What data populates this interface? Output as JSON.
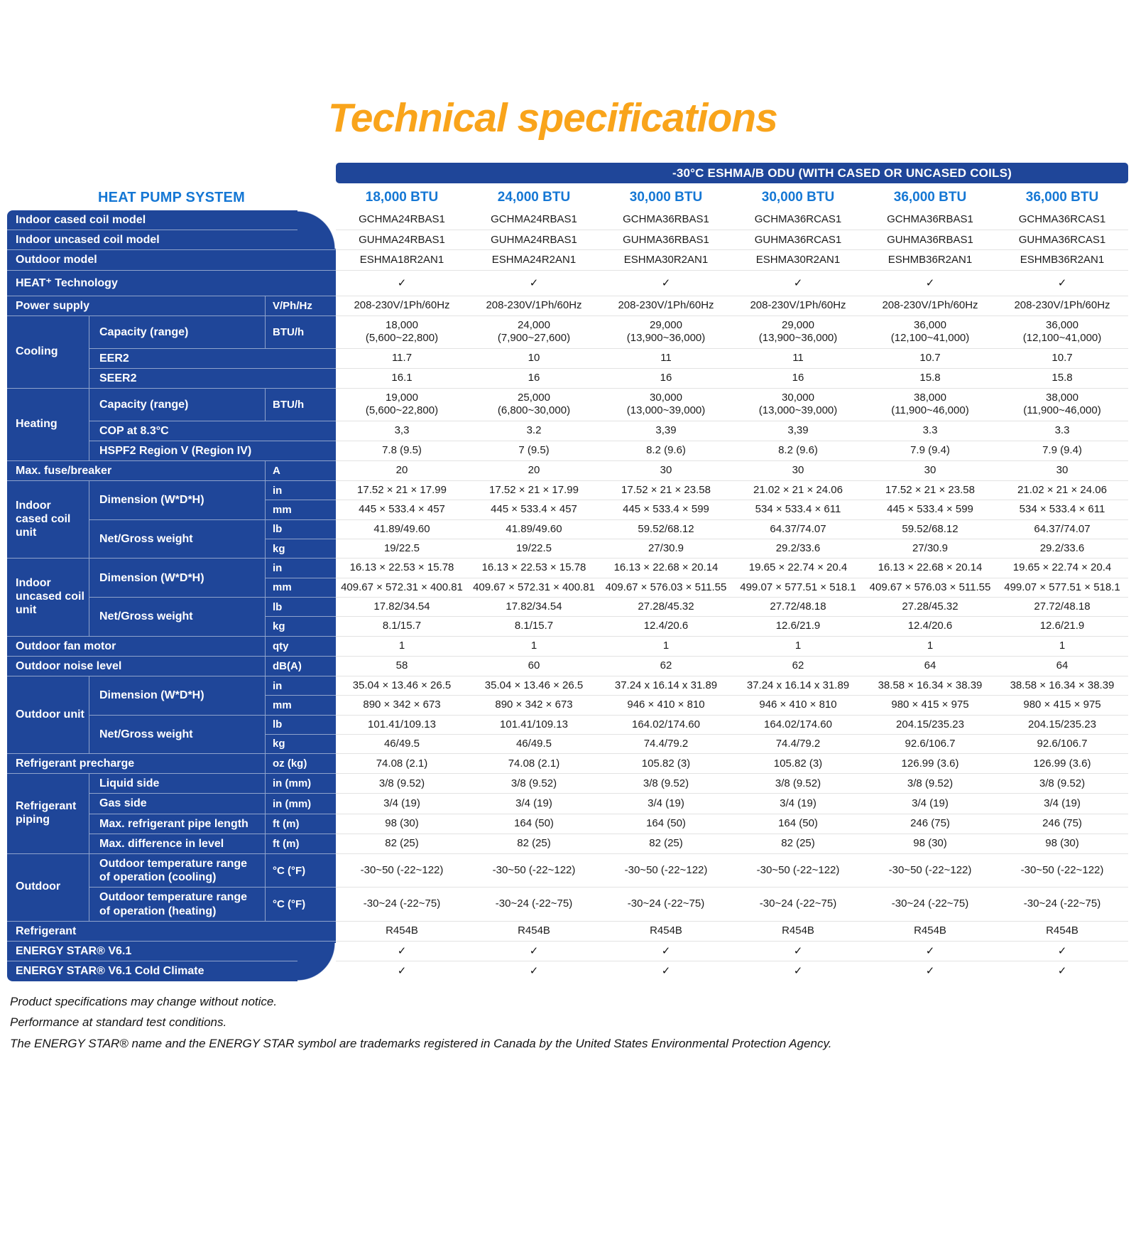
{
  "page": {
    "title": "Technical specifications",
    "band_title": "-30°C ESHMA/B ODU (WITH CASED OR UNCASED COILS)",
    "system_label": "HEAT PUMP SYSTEM",
    "column_headers": [
      "18,000 BTU",
      "24,000 BTU",
      "30,000 BTU",
      "30,000 BTU",
      "36,000 BTU",
      "36,000 BTU"
    ],
    "footnotes": [
      "Product specifications may change without notice.",
      "Performance at standard test conditions.",
      "The ENERGY STAR® name and the ENERGY STAR symbol are trademarks registered in Canada by the United States Environmental Protection Agency."
    ]
  },
  "colors": {
    "dark_blue": "#1F4699",
    "bright_blue": "#1577D4",
    "orange": "#F9A41B",
    "row_separator": "#e3e3e3",
    "value_text": "#1c1c1c"
  },
  "table": {
    "rows": [
      {
        "label": "Indoor cased coil model",
        "span": 3,
        "values": [
          "GCHMA24RBAS1",
          "GCHMA24RBAS1",
          "GCHMA36RBAS1",
          "GCHMA36RCAS1",
          "GCHMA36RBAS1",
          "GCHMA36RCAS1"
        ]
      },
      {
        "label": "Indoor uncased coil model",
        "span": 3,
        "values": [
          "GUHMA24RBAS1",
          "GUHMA24RBAS1",
          "GUHMA36RBAS1",
          "GUHMA36RCAS1",
          "GUHMA36RBAS1",
          "GUHMA36RCAS1"
        ]
      },
      {
        "label": "Outdoor model",
        "span": 3,
        "values": [
          "ESHMA18R2AN1",
          "ESHMA24R2AN1",
          "ESHMA30R2AN1",
          "ESHMA30R2AN1",
          "ESHMB36R2AN1",
          "ESHMB36R2AN1"
        ]
      },
      {
        "label": "HEAT⁺ Technology",
        "span": 3,
        "check": true,
        "cls": "h-heat",
        "values": [
          "✓",
          "✓",
          "✓",
          "✓",
          "✓",
          "✓"
        ]
      },
      {
        "label": "Power supply",
        "span": 2,
        "unit": "V/Ph/Hz",
        "values": [
          "208-230V/1Ph/60Hz",
          "208-230V/1Ph/60Hz",
          "208-230V/1Ph/60Hz",
          "208-230V/1Ph/60Hz",
          "208-230V/1Ph/60Hz",
          "208-230V/1Ph/60Hz"
        ]
      },
      {
        "group": "Cooling",
        "group_rows": 3,
        "label": "Capacity (range)",
        "span": 1,
        "unit": "BTU/h",
        "values": [
          "18,000\n(5,600~22,800)",
          "24,000\n(7,900~27,600)",
          "29,000\n(13,900~36,000)",
          "29,000\n(13,900~36,000)",
          "36,000\n(12,100~41,000)",
          "36,000\n(12,100~41,000)"
        ]
      },
      {
        "label": "EER2",
        "span": 2,
        "values": [
          "11.7",
          "10",
          "11",
          "11",
          "10.7",
          "10.7"
        ]
      },
      {
        "label": "SEER2",
        "span": 2,
        "values": [
          "16.1",
          "16",
          "16",
          "16",
          "15.8",
          "15.8"
        ]
      },
      {
        "group": "Heating",
        "group_rows": 3,
        "label": "Capacity (range)",
        "span": 1,
        "unit": "BTU/h",
        "values": [
          "19,000\n(5,600~22,800)",
          "25,000\n(6,800~30,000)",
          "30,000\n(13,000~39,000)",
          "30,000\n(13,000~39,000)",
          "38,000\n(11,900~46,000)",
          "38,000\n(11,900~46,000)"
        ]
      },
      {
        "label": "COP at 8.3°C",
        "span": 2,
        "values": [
          "3,3",
          "3.2",
          "3,39",
          "3,39",
          "3.3",
          "3.3"
        ]
      },
      {
        "label": "HSPF2 Region V (Region IV)",
        "span": 2,
        "values": [
          "7.8 (9.5)",
          "7 (9.5)",
          "8.2 (9.6)",
          "8.2 (9.6)",
          "7.9 (9.4)",
          "7.9 (9.4)"
        ]
      },
      {
        "label": "Max. fuse/breaker",
        "span": 2,
        "unit": "A",
        "values": [
          "20",
          "20",
          "30",
          "30",
          "30",
          "30"
        ]
      },
      {
        "group": "Indoor cased coil unit",
        "group_rows": 4,
        "label": "Dimension (W*D*H)",
        "label_rows": 2,
        "span": 1,
        "unit": "in",
        "values": [
          "17.52 × 21 × 17.99",
          "17.52 × 21 × 17.99",
          "17.52 × 21 × 23.58",
          "21.02 × 21 × 24.06",
          "17.52 × 21 × 23.58",
          "21.02 × 21 × 24.06"
        ]
      },
      {
        "unit": "mm",
        "values": [
          "445 × 533.4 × 457",
          "445 × 533.4 × 457",
          "445 × 533.4 × 599",
          "534 × 533.4 × 611",
          "445 × 533.4 × 599",
          "534 × 533.4 × 611"
        ]
      },
      {
        "label": "Net/Gross weight",
        "label_rows": 2,
        "span": 1,
        "unit": "lb",
        "values": [
          "41.89/49.60",
          "41.89/49.60",
          "59.52/68.12",
          "64.37/74.07",
          "59.52/68.12",
          "64.37/74.07"
        ]
      },
      {
        "unit": "kg",
        "values": [
          "19/22.5",
          "19/22.5",
          "27/30.9",
          "29.2/33.6",
          "27/30.9",
          "29.2/33.6"
        ]
      },
      {
        "group": "Indoor uncased coil unit",
        "group_rows": 4,
        "label": "Dimension (W*D*H)",
        "label_rows": 2,
        "span": 1,
        "unit": "in",
        "values": [
          "16.13 × 22.53 × 15.78",
          "16.13 × 22.53 × 15.78",
          "16.13 × 22.68 × 20.14",
          "19.65 × 22.74 × 20.4",
          "16.13 × 22.68 × 20.14",
          "19.65 × 22.74 × 20.4"
        ]
      },
      {
        "unit": "mm",
        "values": [
          "409.67 × 572.31 × 400.81",
          "409.67 × 572.31 × 400.81",
          "409.67 × 576.03 × 511.55",
          "499.07 × 577.51 × 518.1",
          "409.67 × 576.03 × 511.55",
          "499.07 × 577.51 × 518.1"
        ]
      },
      {
        "label": "Net/Gross weight",
        "label_rows": 2,
        "span": 1,
        "unit": "lb",
        "values": [
          "17.82/34.54",
          "17.82/34.54",
          "27.28/45.32",
          "27.72/48.18",
          "27.28/45.32",
          "27.72/48.18"
        ]
      },
      {
        "unit": "kg",
        "values": [
          "8.1/15.7",
          "8.1/15.7",
          "12.4/20.6",
          "12.6/21.9",
          "12.4/20.6",
          "12.6/21.9"
        ]
      },
      {
        "label": "Outdoor fan motor",
        "span": 2,
        "unit": "qty",
        "values": [
          "1",
          "1",
          "1",
          "1",
          "1",
          "1"
        ]
      },
      {
        "label": "Outdoor noise level",
        "span": 2,
        "unit": "dB(A)",
        "values": [
          "58",
          "60",
          "62",
          "62",
          "64",
          "64"
        ]
      },
      {
        "group": "Outdoor unit",
        "group_rows": 4,
        "label": "Dimension (W*D*H)",
        "label_rows": 2,
        "span": 1,
        "unit": "in",
        "values": [
          "35.04 × 13.46 × 26.5",
          "35.04 × 13.46 × 26.5",
          "37.24 x 16.14 x 31.89",
          "37.24 x 16.14 x 31.89",
          "38.58 × 16.34 × 38.39",
          "38.58 × 16.34 × 38.39"
        ]
      },
      {
        "unit": "mm",
        "values": [
          "890 × 342 × 673",
          "890 × 342 × 673",
          "946 × 410 × 810",
          "946 × 410 × 810",
          "980 × 415 × 975",
          "980 × 415 × 975"
        ]
      },
      {
        "label": "Net/Gross weight",
        "label_rows": 2,
        "span": 1,
        "unit": "lb",
        "values": [
          "101.41/109.13",
          "101.41/109.13",
          "164.02/174.60",
          "164.02/174.60",
          "204.15/235.23",
          "204.15/235.23"
        ]
      },
      {
        "unit": "kg",
        "values": [
          "46/49.5",
          "46/49.5",
          "74.4/79.2",
          "74.4/79.2",
          "92.6/106.7",
          "92.6/106.7"
        ]
      },
      {
        "label": "Refrigerant precharge",
        "span": 2,
        "unit": "oz (kg)",
        "values": [
          "74.08 (2.1)",
          "74.08 (2.1)",
          "105.82 (3)",
          "105.82 (3)",
          "126.99 (3.6)",
          "126.99 (3.6)"
        ]
      },
      {
        "group": "Refrigerant piping",
        "group_rows": 4,
        "label": "Liquid side",
        "span": 1,
        "unit": "in (mm)",
        "values": [
          "3/8 (9.52)",
          "3/8 (9.52)",
          "3/8 (9.52)",
          "3/8 (9.52)",
          "3/8 (9.52)",
          "3/8 (9.52)"
        ]
      },
      {
        "label": "Gas side",
        "span": 1,
        "unit": "in (mm)",
        "values": [
          "3/4 (19)",
          "3/4 (19)",
          "3/4 (19)",
          "3/4 (19)",
          "3/4 (19)",
          "3/4 (19)"
        ]
      },
      {
        "label": "Max. refrigerant pipe length",
        "span": 1,
        "unit": "ft (m)",
        "values": [
          "98 (30)",
          "164 (50)",
          "164 (50)",
          "164 (50)",
          "246 (75)",
          "246 (75)"
        ]
      },
      {
        "label": "Max. difference in level",
        "span": 1,
        "unit": "ft (m)",
        "values": [
          "82 (25)",
          "82 (25)",
          "82 (25)",
          "82 (25)",
          "98 (30)",
          "98 (30)"
        ]
      },
      {
        "group": "Outdoor",
        "group_rows": 2,
        "label": "Outdoor temperature range\nof operation (cooling)",
        "span": 1,
        "unit": "°C (°F)",
        "values": [
          "-30~50 (-22~122)",
          "-30~50 (-22~122)",
          "-30~50 (-22~122)",
          "-30~50 (-22~122)",
          "-30~50 (-22~122)",
          "-30~50 (-22~122)"
        ]
      },
      {
        "label": "Outdoor temperature range\nof operation (heating)",
        "span": 1,
        "unit": "°C (°F)",
        "values": [
          "-30~24 (-22~75)",
          "-30~24 (-22~75)",
          "-30~24 (-22~75)",
          "-30~24 (-22~75)",
          "-30~24 (-22~75)",
          "-30~24 (-22~75)"
        ]
      },
      {
        "label": "Refrigerant",
        "span": 3,
        "values": [
          "R454B",
          "R454B",
          "R454B",
          "R454B",
          "R454B",
          "R454B"
        ]
      },
      {
        "label": "ENERGY STAR® V6.1",
        "span": 3,
        "check": true,
        "values": [
          "✓",
          "✓",
          "✓",
          "✓",
          "✓",
          "✓"
        ]
      },
      {
        "label": "ENERGY STAR® V6.1 Cold Climate",
        "span": 3,
        "check": true,
        "values": [
          "✓",
          "✓",
          "✓",
          "✓",
          "✓",
          "✓"
        ]
      }
    ]
  }
}
